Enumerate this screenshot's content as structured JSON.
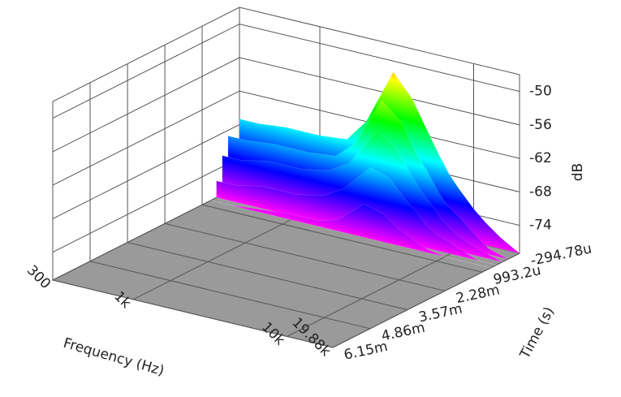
{
  "chart_data": {
    "type": "waterfall",
    "xlabel": "Frequency (Hz)",
    "ylabel": "Time (s)",
    "zlabel": "dB",
    "x": [
      300,
      400,
      600,
      1000,
      1500,
      2000,
      3000,
      4000,
      5000,
      6000,
      7000,
      8000,
      10000,
      12000,
      15000,
      19880
    ],
    "series": [
      {
        "time": -0.00029478,
        "values": [
          -67,
          -67,
          -66.5,
          -66.5,
          -66,
          -62,
          -52,
          -56,
          -61,
          -65,
          -68,
          -70,
          -73,
          -75,
          -77,
          -79
        ]
      },
      {
        "time": 0.0001,
        "values": [
          -69,
          -69,
          -68.5,
          -68.5,
          -68,
          -65,
          -56,
          -59,
          -64,
          -67,
          -70,
          -72,
          -74,
          -76,
          -78,
          -79
        ]
      },
      {
        "time": 0.0003,
        "values": [
          -72,
          -72,
          -71,
          -71,
          -70,
          -68,
          -61,
          -63,
          -67,
          -70,
          -72,
          -74,
          -76,
          -77,
          -78,
          -79
        ]
      },
      {
        "time": 0.0005,
        "values": [
          -76,
          -76,
          -75,
          -75,
          -74,
          -72,
          -67,
          -68,
          -71,
          -73,
          -75,
          -76,
          -77,
          -78,
          -79,
          -79
        ]
      },
      {
        "time": 0.0007,
        "values": [
          -79,
          -79,
          -78.5,
          -78,
          -78,
          -77,
          -73,
          -74,
          -76,
          -77,
          -78,
          -78.5,
          -79,
          -79,
          -79,
          -79
        ]
      }
    ],
    "xlim": [
      300,
      19880
    ],
    "log_x": true,
    "xticks": [
      300,
      {
        "value": 1000,
        "label": "1k"
      },
      {
        "value": 10000,
        "label": "10k"
      },
      {
        "value": 19880,
        "label": "19.88k"
      }
    ],
    "ylim": [
      -0.00029478,
      0.00615
    ],
    "yticks": [
      {
        "value": -0.00029478,
        "label": "-294.78u"
      },
      {
        "value": 0.0009932,
        "label": "993.2u"
      },
      {
        "value": 0.00228,
        "label": "2.28m"
      },
      {
        "value": 0.00357,
        "label": "3.57m"
      },
      {
        "value": 0.00486,
        "label": "4.86m"
      },
      {
        "value": 0.00615,
        "label": "6.15m"
      }
    ],
    "zlim": [
      -79,
      -47
    ],
    "zticks": [
      -50,
      -56,
      -62,
      -68,
      -74
    ],
    "grid": true,
    "floor_color": "#9a9a9a",
    "colormap": [
      "#ff00ff",
      "#0000ff",
      "#00ffff",
      "#00ff00",
      "#ffff00",
      "#ff0000"
    ]
  }
}
